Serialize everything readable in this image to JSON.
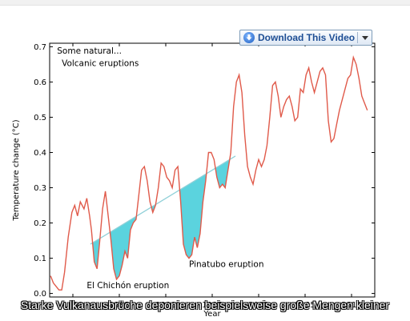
{
  "toolbar": {
    "download_label": "Download This Video"
  },
  "subtitle": "Starke Vulkanausbrüche deponieren beispielsweise große Mengen kleiner",
  "chart_data": {
    "type": "line",
    "xlabel": "Year",
    "ylabel": "Temperature change (°C)",
    "xlim": [
      1977.5,
      2012.5
    ],
    "ylim": [
      -0.01,
      0.71
    ],
    "xticks": [
      1980,
      1985,
      1990,
      1995,
      2000,
      2005,
      2010
    ],
    "yticks": [
      0.0,
      0.1,
      0.2,
      0.3,
      0.4,
      0.5,
      0.6,
      0.7
    ],
    "grid": false,
    "line_color": "#e05a4a",
    "fill_color": "#5bd3de",
    "series": [
      {
        "x": [
          1977.6,
          1977.9,
          1978.2,
          1978.5,
          1978.8,
          1979.1,
          1979.5,
          1979.9,
          1980.2,
          1980.5,
          1980.8,
          1981.0,
          1981.2,
          1981.5,
          1981.8,
          1982.0,
          1982.3,
          1982.6,
          1982.9,
          1983.2,
          1983.5,
          1983.8,
          1984.1,
          1984.4,
          1984.7,
          1985.0,
          1985.3,
          1985.6,
          1985.9,
          1986.2,
          1986.5,
          1986.8,
          1987.1,
          1987.4,
          1987.7,
          1988.0,
          1988.3,
          1988.6,
          1988.9,
          1989.2,
          1989.5,
          1989.8,
          1990.1,
          1990.4,
          1990.7,
          1991.0,
          1991.3,
          1991.6,
          1991.9,
          1992.2,
          1992.5,
          1992.8,
          1993.1,
          1993.4,
          1993.7,
          1994.0,
          1994.3,
          1994.6,
          1994.9,
          1995.2,
          1995.5,
          1995.8,
          1996.1,
          1996.4,
          1996.7,
          1997.0,
          1997.3,
          1997.6,
          1997.9,
          1998.2,
          1998.5,
          1998.8,
          1999.1,
          1999.4,
          1999.7,
          2000.0,
          2000.3,
          2000.6,
          2000.9,
          2001.2,
          2001.5,
          2001.8,
          2002.1,
          2002.4,
          2002.7,
          2003.0,
          2003.3,
          2003.6,
          2003.9,
          2004.2,
          2004.5,
          2004.8,
          2005.1,
          2005.4,
          2005.7,
          2006.0,
          2006.3,
          2006.6,
          2006.9,
          2007.2,
          2007.5,
          2007.8,
          2008.1,
          2008.4,
          2008.7,
          2009.0,
          2009.3,
          2009.6,
          2009.9,
          2010.2,
          2010.5,
          2010.8,
          2011.1,
          2011.4,
          2011.7
        ],
        "y": [
          0.05,
          0.03,
          0.02,
          0.01,
          0.01,
          0.06,
          0.16,
          0.23,
          0.25,
          0.22,
          0.26,
          0.25,
          0.24,
          0.27,
          0.22,
          0.18,
          0.09,
          0.07,
          0.15,
          0.24,
          0.29,
          0.22,
          0.15,
          0.07,
          0.04,
          0.05,
          0.08,
          0.12,
          0.1,
          0.18,
          0.2,
          0.21,
          0.28,
          0.35,
          0.36,
          0.32,
          0.26,
          0.23,
          0.25,
          0.3,
          0.37,
          0.36,
          0.33,
          0.32,
          0.3,
          0.35,
          0.36,
          0.26,
          0.14,
          0.11,
          0.1,
          0.11,
          0.16,
          0.13,
          0.17,
          0.26,
          0.32,
          0.4,
          0.4,
          0.38,
          0.33,
          0.3,
          0.31,
          0.3,
          0.35,
          0.4,
          0.53,
          0.6,
          0.62,
          0.57,
          0.45,
          0.36,
          0.33,
          0.31,
          0.35,
          0.38,
          0.36,
          0.38,
          0.42,
          0.5,
          0.59,
          0.6,
          0.56,
          0.5,
          0.53,
          0.55,
          0.56,
          0.53,
          0.49,
          0.5,
          0.58,
          0.57,
          0.62,
          0.64,
          0.6,
          0.57,
          0.6,
          0.63,
          0.64,
          0.62,
          0.49,
          0.43,
          0.44,
          0.48,
          0.52,
          0.55,
          0.58,
          0.61,
          0.62,
          0.67,
          0.65,
          0.61,
          0.56,
          0.54,
          0.52
        ]
      }
    ],
    "trend_line": {
      "x": [
        1981.9,
        1997.5
      ],
      "y": [
        0.14,
        0.39
      ]
    },
    "annotations": [
      {
        "text": "Some natural...",
        "x": 1978.3,
        "y": 0.68
      },
      {
        "text": "Volcanic eruptions",
        "x": 1978.8,
        "y": 0.645
      },
      {
        "text": "Pinatubo eruption",
        "x": 1992.5,
        "y": 0.075
      },
      {
        "text": "El Chichón eruption",
        "x": 1981.5,
        "y": 0.015
      }
    ]
  }
}
